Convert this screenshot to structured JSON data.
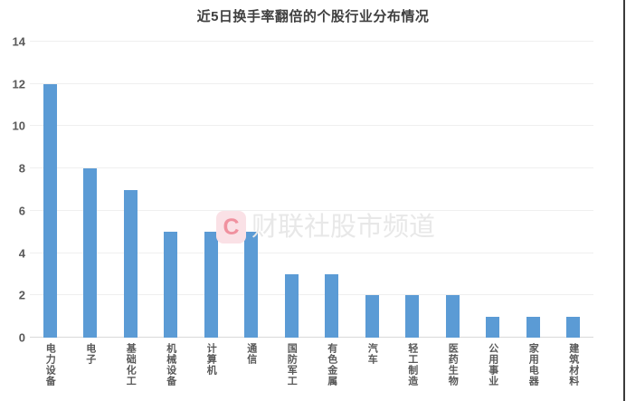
{
  "title": "近5日换手率翻倍的个股行业分布情况",
  "watermark": {
    "logo_letter": "C",
    "text": "财联社股市频道"
  },
  "colors": {
    "bar": "#5b9bd5",
    "title_text": "#3f3f3f",
    "axis_label": "#595959",
    "gridline": "#efefef",
    "baseline": "#d9d9d9",
    "watermark_logo_bg": "#fae1e6",
    "watermark_logo_letter": "#f0919f",
    "watermark_text": "#e8e8e8"
  },
  "chart_data": {
    "type": "bar",
    "title": "近5日换手率翻倍的个股行业分布情况",
    "categories": [
      "电力设备",
      "电子",
      "基础化工",
      "机械设备",
      "计算机",
      "通信",
      "国防军工",
      "有色金属",
      "汽车",
      "轻工制造",
      "医药生物",
      "公用事业",
      "家用电器",
      "建筑材料"
    ],
    "values": [
      12,
      8,
      7,
      5,
      5,
      5,
      3,
      3,
      2,
      2,
      2,
      1,
      1,
      1
    ],
    "xlabel": "",
    "ylabel": "",
    "ylim": [
      0,
      14
    ],
    "ytick_step": 2,
    "yticks": [
      0,
      2,
      4,
      6,
      8,
      10,
      12,
      14
    ],
    "grid": true,
    "legend": false,
    "bar_color": "#5b9bd5"
  }
}
